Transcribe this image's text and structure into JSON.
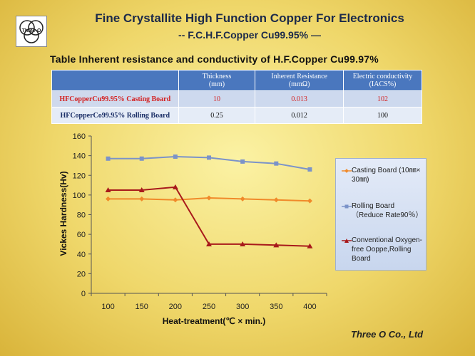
{
  "header": {
    "logo_text": "Three-O",
    "title": "Fine Crystallite High Function Copper For Electronics",
    "subtitle": "-- F.C.H.F.Copper Cu99.95%  —"
  },
  "table": {
    "caption": "Table  Inherent resistance and conductivity of H.F.Copper Cu99.97%",
    "columns": [
      {
        "line1": "Thickness",
        "line2": "(mm)"
      },
      {
        "line1": "Inherent Resistance",
        "line2": "(mmΩ)"
      },
      {
        "line1": "Electric conductivity",
        "line2": "(IACS%)"
      }
    ],
    "rows": [
      {
        "label": "HFCopperCu99.95% Casting Board",
        "thickness": "10",
        "resistance": "0.013",
        "conductivity": "102"
      },
      {
        "label": "HFCopperCo99.95% Rolling Board",
        "thickness": "0.25",
        "resistance": "0.012",
        "conductivity": "100"
      }
    ]
  },
  "chart_data": {
    "type": "line",
    "title": "",
    "xlabel": "Heat-treatment(℃ × min.)",
    "ylabel": "Vickes Hardness(Hv)",
    "x": [
      100,
      150,
      200,
      250,
      300,
      350,
      400
    ],
    "yticks": [
      0,
      20,
      40,
      60,
      80,
      100,
      120,
      140,
      160
    ],
    "ylim": [
      0,
      160
    ],
    "grid": false,
    "legend_position": "right",
    "series": [
      {
        "name": "Casting Board (10㎜× 30㎜)",
        "color": "#f08a2a",
        "marker": "diamond",
        "values": [
          96,
          96,
          95,
          97,
          96,
          95,
          94
        ]
      },
      {
        "name": "Rolling Board（Reduce Rate90％）",
        "color": "#7b93c9",
        "marker": "square",
        "values": [
          137,
          137,
          139,
          138,
          134,
          132,
          126
        ]
      },
      {
        "name": "Conventional Oxygen-free Ooppe,Rolling Board",
        "color": "#a8191b",
        "marker": "triangle",
        "values": [
          105,
          105,
          108,
          50,
          50,
          49,
          48
        ]
      }
    ]
  },
  "footer": {
    "company": "Three  O Co., Ltd"
  }
}
